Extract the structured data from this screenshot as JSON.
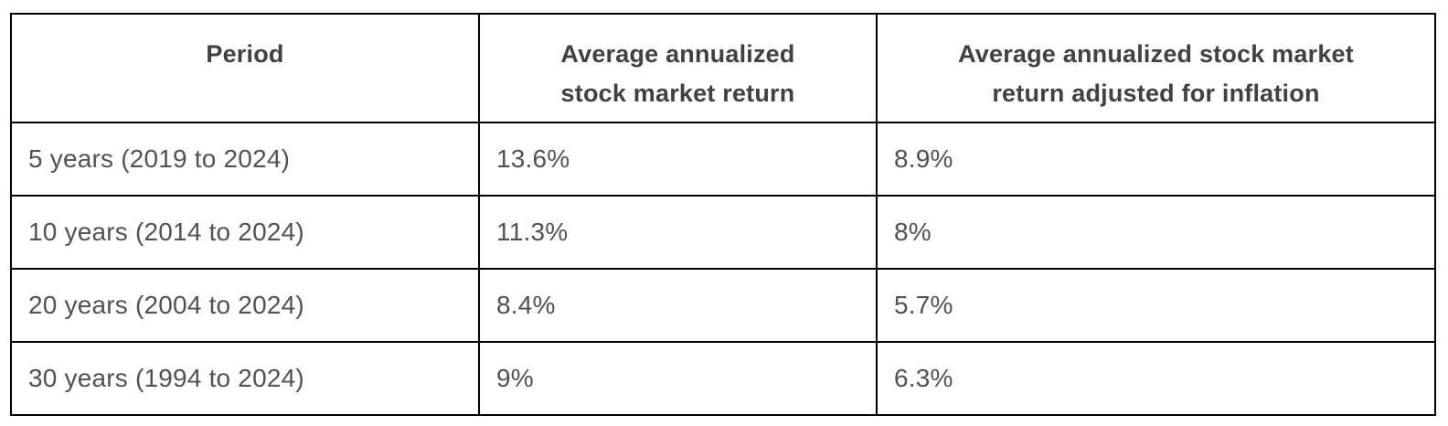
{
  "colors": {
    "background": "#ffffff",
    "border": "#000000",
    "header_text": "#414141",
    "body_text": "#525252"
  },
  "table": {
    "columns": [
      {
        "label": "Period"
      },
      {
        "label": "Average annualized stock market return"
      },
      {
        "label": "Average annualized stock market return adjusted for inflation"
      }
    ],
    "rows": [
      {
        "period": "5 years (2019 to 2024)",
        "nominal_return": "13.6%",
        "real_return": "8.9%"
      },
      {
        "period": "10 years (2014 to 2024)",
        "nominal_return": "11.3%",
        "real_return": "8%"
      },
      {
        "period": "20 years (2004 to 2024)",
        "nominal_return": "8.4%",
        "real_return": "5.7%"
      },
      {
        "period": "30 years (1994 to 2024)",
        "nominal_return": "9%",
        "real_return": "6.3%"
      }
    ]
  },
  "chart_data": {
    "type": "table",
    "title": "",
    "columns": [
      "Period",
      "Average annualized stock market return",
      "Average annualized stock market return adjusted for inflation"
    ],
    "categories": [
      "5 years (2019 to 2024)",
      "10 years (2014 to 2024)",
      "20 years (2004 to 2024)",
      "30 years (1994 to 2024)"
    ],
    "series": [
      {
        "name": "Average annualized stock market return",
        "values": [
          13.6,
          11.3,
          8.4,
          9
        ],
        "unit": "%"
      },
      {
        "name": "Average annualized stock market return adjusted for inflation",
        "values": [
          8.9,
          8,
          5.7,
          6.3
        ],
        "unit": "%"
      }
    ]
  }
}
